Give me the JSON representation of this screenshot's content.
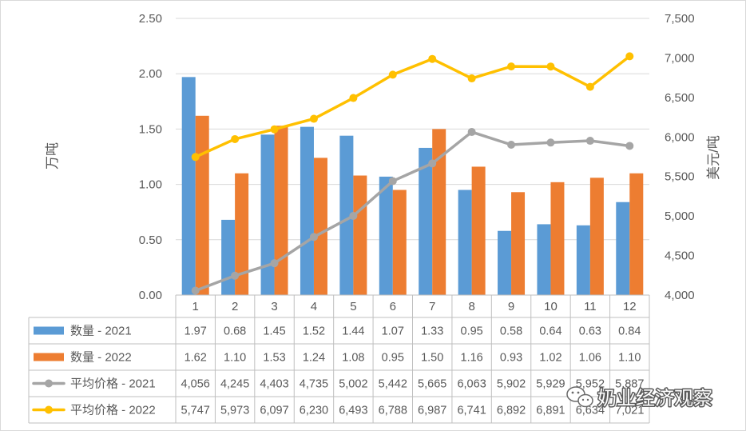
{
  "chart_data": {
    "type": "bar",
    "categories": [
      "1",
      "2",
      "3",
      "4",
      "5",
      "6",
      "7",
      "8",
      "9",
      "10",
      "11",
      "12"
    ],
    "y_left": {
      "label": "万吨",
      "range": [
        0,
        2.5
      ],
      "ticks": [
        "0.00",
        "0.50",
        "1.00",
        "1.50",
        "2.00",
        "2.50"
      ]
    },
    "y_right": {
      "label": "美元/吨",
      "range": [
        4000,
        7500
      ],
      "ticks": [
        "4,000",
        "4,500",
        "5,000",
        "5,500",
        "6,000",
        "6,500",
        "7,000",
        "7,500"
      ]
    },
    "grid": true,
    "series": [
      {
        "name": "数量 - 2021",
        "type": "bar",
        "color": "#5B9BD5",
        "values": [
          1.97,
          0.68,
          1.45,
          1.52,
          1.44,
          1.07,
          1.33,
          0.95,
          0.58,
          0.64,
          0.63,
          0.84
        ],
        "data_labels": [
          "1.97",
          "0.68",
          "1.45",
          "1.52",
          "1.44",
          "1.07",
          "1.33",
          "0.95",
          "0.58",
          "0.64",
          "0.63",
          "0.84"
        ]
      },
      {
        "name": "数量 - 2022",
        "type": "bar",
        "color": "#ED7D31",
        "values": [
          1.62,
          1.1,
          1.53,
          1.24,
          1.08,
          0.95,
          1.5,
          1.16,
          0.93,
          1.02,
          1.06,
          1.1
        ],
        "data_labels": [
          "1.62",
          "1.10",
          "1.53",
          "1.24",
          "1.08",
          "0.95",
          "1.50",
          "1.16",
          "0.93",
          "1.02",
          "1.06",
          "1.10"
        ]
      },
      {
        "name": "平均价格 - 2021",
        "type": "line",
        "color": "#A5A5A5",
        "values": [
          4056,
          4245,
          4403,
          4735,
          5002,
          5442,
          5665,
          6063,
          5902,
          5929,
          5952,
          5887
        ],
        "data_labels": [
          "4,056",
          "4,245",
          "4,403",
          "4,735",
          "5,002",
          "5,442",
          "5,665",
          "6,063",
          "5,902",
          "5,929",
          "5,952",
          "5,887"
        ]
      },
      {
        "name": "平均价格 - 2022",
        "type": "line",
        "color": "#FFC000",
        "values": [
          5747,
          5973,
          6097,
          6230,
          6493,
          6788,
          6987,
          6741,
          6892,
          6891,
          6634,
          7021
        ],
        "data_labels": [
          "5,747",
          "5,973",
          "6,097",
          "6,230",
          "6,493",
          "6,788",
          "6,987",
          "6,741",
          "6,892",
          "6,891",
          "6,634",
          "7,021"
        ]
      }
    ]
  },
  "watermark": "奶业经济观察",
  "watermark_icon": "wechat-icon",
  "colors": {
    "text": "#595959",
    "grid": "#D9D9D9",
    "table_border": "#BFBFBF"
  }
}
